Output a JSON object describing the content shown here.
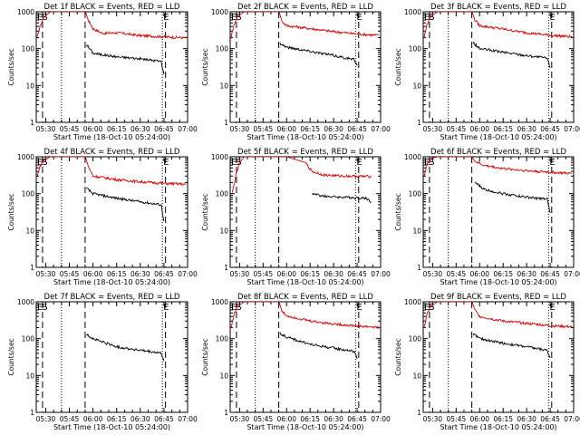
{
  "chart_data": {
    "type": "line",
    "shared": {
      "xlabel": "Start Time (18-Oct-10 05:24:00)",
      "ylabel": "Counts/sec",
      "x_ticks": [
        "05:30",
        "05:45",
        "06:00",
        "06:15",
        "06:30",
        "06:45",
        "07:00"
      ],
      "y_ticks": [
        "1",
        "10",
        "100",
        "1000"
      ],
      "y_scale": "log",
      "ylim": [
        1,
        1000
      ],
      "xlim": [
        "05:24",
        "07:00"
      ],
      "grid": false,
      "colors": {
        "events": "#000000",
        "lld": "#d80000"
      },
      "markers": {
        "dashed_lines": [
          "05:28",
          "05:55",
          "06:46"
        ],
        "dotted_lines": [
          "05:40",
          "06:44"
        ],
        "labels": [
          {
            "text": "E",
            "at": "05:24"
          },
          {
            "text": "S",
            "at": "05:27"
          },
          {
            "text": "E",
            "at": "06:44"
          }
        ]
      }
    },
    "panels": [
      {
        "title": "Det 1f BLACK = Events, RED = LLD",
        "events": [
          [
            5.93,
            130
          ],
          [
            6.0,
            75
          ],
          [
            6.25,
            60
          ],
          [
            6.5,
            53
          ],
          [
            6.72,
            45
          ],
          [
            6.75,
            20
          ]
        ],
        "lld": [
          [
            5.41,
            200
          ],
          [
            5.44,
            400
          ],
          [
            5.48,
            700
          ],
          [
            5.55,
            1000
          ],
          [
            5.92,
            1000
          ],
          [
            5.95,
            600
          ],
          [
            6.0,
            350
          ],
          [
            6.1,
            260
          ],
          [
            6.25,
            270
          ],
          [
            6.5,
            225
          ],
          [
            6.75,
            210
          ],
          [
            6.98,
            195
          ]
        ]
      },
      {
        "title": "Det 2f BLACK = Events, RED = LLD",
        "events": [
          [
            5.93,
            140
          ],
          [
            6.0,
            110
          ],
          [
            6.25,
            85
          ],
          [
            6.5,
            65
          ],
          [
            6.72,
            50
          ],
          [
            6.75,
            35
          ]
        ],
        "lld": [
          [
            5.41,
            200
          ],
          [
            5.44,
            450
          ],
          [
            5.48,
            750
          ],
          [
            5.55,
            1000
          ],
          [
            5.92,
            1000
          ],
          [
            5.95,
            550
          ],
          [
            6.0,
            420
          ],
          [
            6.25,
            350
          ],
          [
            6.5,
            290
          ],
          [
            6.75,
            250
          ],
          [
            6.98,
            230
          ]
        ]
      },
      {
        "title": "Det 3f BLACK = Events, RED = LLD",
        "events": [
          [
            5.93,
            145
          ],
          [
            6.0,
            100
          ],
          [
            6.25,
            80
          ],
          [
            6.5,
            65
          ],
          [
            6.72,
            55
          ],
          [
            6.75,
            30
          ]
        ],
        "lld": [
          [
            5.41,
            200
          ],
          [
            5.44,
            450
          ],
          [
            5.48,
            750
          ],
          [
            5.55,
            1000
          ],
          [
            5.92,
            1000
          ],
          [
            5.95,
            600
          ],
          [
            6.0,
            420
          ],
          [
            6.25,
            340
          ],
          [
            6.5,
            270
          ],
          [
            6.75,
            230
          ],
          [
            6.98,
            210
          ]
        ]
      },
      {
        "title": "Det 4f BLACK = Events, RED = LLD",
        "events": [
          [
            5.93,
            140
          ],
          [
            6.0,
            100
          ],
          [
            6.25,
            75
          ],
          [
            6.5,
            60
          ],
          [
            6.72,
            50
          ],
          [
            6.75,
            18
          ]
        ],
        "lld": [
          [
            5.41,
            300
          ],
          [
            5.44,
            550
          ],
          [
            5.48,
            800
          ],
          [
            5.55,
            1000
          ],
          [
            5.92,
            1000
          ],
          [
            5.95,
            550
          ],
          [
            6.0,
            300
          ],
          [
            6.25,
            240
          ],
          [
            6.5,
            210
          ],
          [
            6.75,
            190
          ],
          [
            6.98,
            180
          ]
        ]
      },
      {
        "title": "Det 5f BLACK = Events, RED = LLD",
        "events": [
          [
            6.27,
            100
          ],
          [
            6.4,
            85
          ],
          [
            6.6,
            80
          ],
          [
            6.85,
            75
          ],
          [
            6.9,
            60
          ]
        ],
        "lld": [
          [
            5.42,
            100
          ],
          [
            5.46,
            300
          ],
          [
            5.5,
            700
          ],
          [
            5.55,
            1000
          ],
          [
            5.7,
            1000
          ],
          [
            6.0,
            1000
          ],
          [
            6.2,
            700
          ],
          [
            6.27,
            400
          ],
          [
            6.4,
            320
          ],
          [
            6.6,
            300
          ],
          [
            6.9,
            290
          ]
        ]
      },
      {
        "title": "Det 6f BLACK = Events, RED = LLD",
        "events": [
          [
            5.95,
            200
          ],
          [
            6.05,
            130
          ],
          [
            6.25,
            100
          ],
          [
            6.5,
            80
          ],
          [
            6.72,
            70
          ],
          [
            6.75,
            30
          ]
        ],
        "lld": [
          [
            5.41,
            300
          ],
          [
            5.44,
            600
          ],
          [
            5.48,
            900
          ],
          [
            5.55,
            1000
          ],
          [
            5.92,
            1000
          ],
          [
            5.95,
            750
          ],
          [
            6.05,
            580
          ],
          [
            6.25,
            480
          ],
          [
            6.5,
            420
          ],
          [
            6.75,
            380
          ],
          [
            6.98,
            350
          ]
        ]
      },
      {
        "title": "Det 7f BLACK = Events, RED = LLD",
        "events": [
          [
            5.93,
            130
          ],
          [
            6.0,
            100
          ],
          [
            6.25,
            60
          ],
          [
            6.5,
            48
          ],
          [
            6.72,
            40
          ],
          [
            6.75,
            25
          ]
        ],
        "lld": [
          [
            5.93,
            1000
          ]
        ]
      },
      {
        "title": "Det 8f BLACK = Events, RED = LLD",
        "events": [
          [
            5.93,
            140
          ],
          [
            6.0,
            110
          ],
          [
            6.25,
            70
          ],
          [
            6.5,
            55
          ],
          [
            6.72,
            45
          ],
          [
            6.75,
            28
          ]
        ],
        "lld": [
          [
            5.41,
            200
          ],
          [
            5.44,
            450
          ],
          [
            5.48,
            750
          ],
          [
            5.55,
            1000
          ],
          [
            5.92,
            1000
          ],
          [
            5.95,
            550
          ],
          [
            6.0,
            420
          ],
          [
            6.25,
            300
          ],
          [
            6.5,
            250
          ],
          [
            6.75,
            220
          ],
          [
            6.98,
            200
          ]
        ]
      },
      {
        "title": "Det 9f BLACK = Events, RED = LLD",
        "events": [
          [
            5.93,
            140
          ],
          [
            6.0,
            100
          ],
          [
            6.25,
            75
          ],
          [
            6.5,
            60
          ],
          [
            6.72,
            48
          ],
          [
            6.75,
            30
          ]
        ],
        "lld": [
          [
            5.41,
            200
          ],
          [
            5.44,
            450
          ],
          [
            5.48,
            750
          ],
          [
            5.55,
            1000
          ],
          [
            5.92,
            1000
          ],
          [
            5.95,
            600
          ],
          [
            6.0,
            400
          ],
          [
            6.25,
            300
          ],
          [
            6.5,
            260
          ],
          [
            6.75,
            225
          ],
          [
            6.98,
            210
          ]
        ]
      }
    ]
  }
}
